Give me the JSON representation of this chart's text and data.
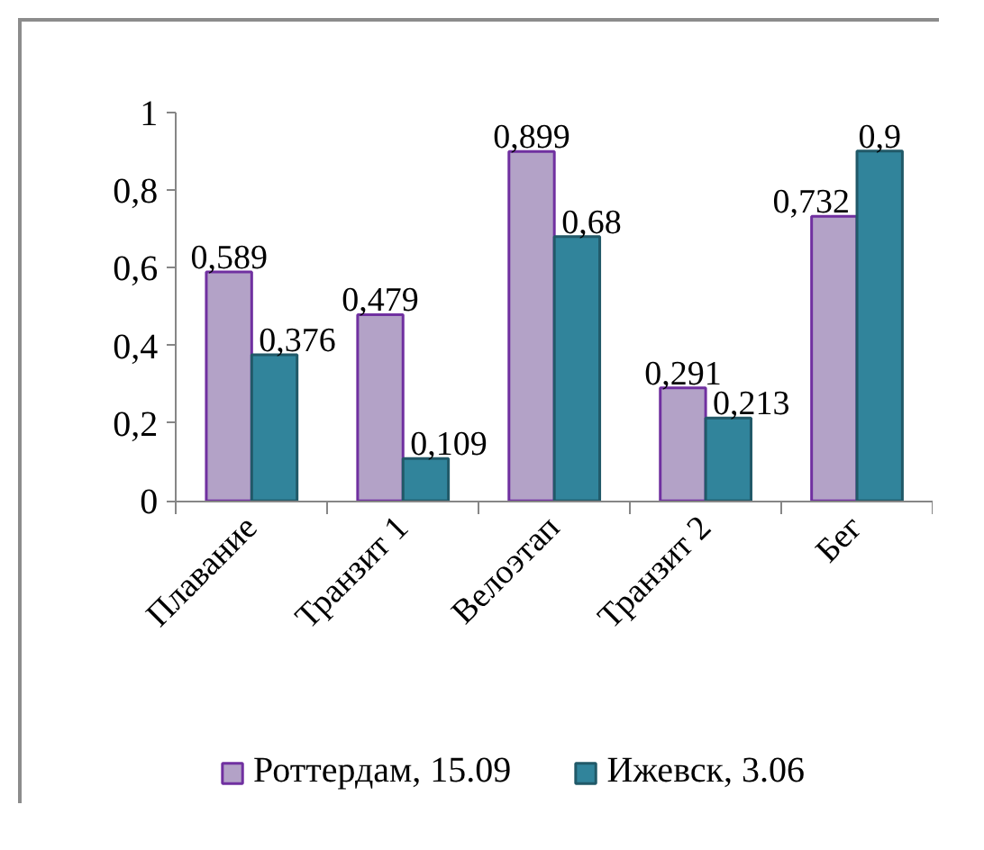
{
  "chart_data": {
    "type": "bar",
    "categories": [
      "Плавание",
      "Транзит 1",
      "Велоэтап",
      "Транзит 2",
      "Бег"
    ],
    "series": [
      {
        "name": "Роттердам, 15.09",
        "color": "#b3a2c7",
        "values": [
          0.589,
          0.479,
          0.899,
          0.291,
          0.732
        ],
        "value_labels": [
          "0,589",
          "0,479",
          "0,899",
          "0,291",
          "0,732"
        ]
      },
      {
        "name": "Ижевск, 3.06",
        "color": "#31849b",
        "values": [
          0.376,
          0.109,
          0.68,
          0.213,
          0.9
        ],
        "value_labels": [
          "0,376",
          "0,109",
          "0,68",
          "0,213",
          "0,9"
        ]
      }
    ],
    "ylim": [
      0,
      1
    ],
    "yticks": [
      0,
      {
        "value": 0.2,
        "label": "0,2"
      },
      {
        "value": 0.4,
        "label": "0,4"
      },
      {
        "value": 0.6,
        "label": "0,6"
      },
      {
        "value": 0.8,
        "label": "0,8"
      },
      1
    ],
    "grid": false,
    "legend": "bottom"
  }
}
